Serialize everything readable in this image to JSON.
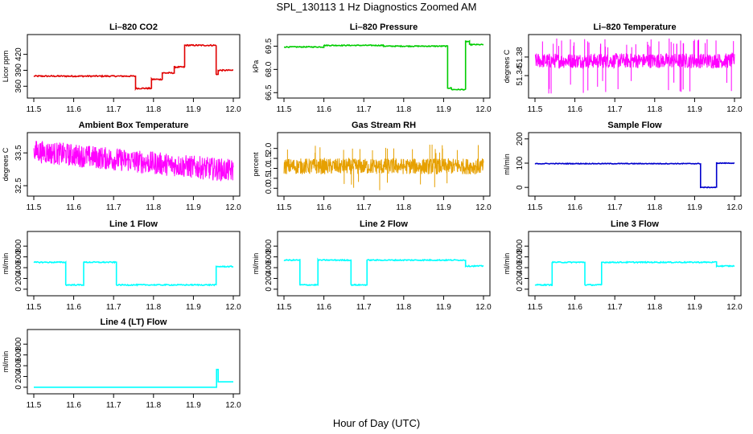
{
  "title": "SPL_130113  1 Hz Diagnostics Zoomed AM",
  "xlabel": "Hour of Day (UTC)",
  "chart_data": [
    {
      "type": "line",
      "title": "Li–820 CO2",
      "ylabel": "Licor ppm",
      "xlim": [
        11.5,
        12.0
      ],
      "xticks": [
        "11.5",
        "11.6",
        "11.7",
        "11.8",
        "11.9",
        "12.0"
      ],
      "ylim": [
        345,
        450
      ],
      "yticks": [
        360,
        390,
        420
      ],
      "yticklabels": [
        "360",
        "390",
        "420"
      ],
      "color": "#e00000",
      "noise": 1.2,
      "spikes": 0,
      "segments": [
        [
          11.5,
          11.755,
          379
        ],
        [
          11.755,
          11.795,
          356
        ],
        [
          11.795,
          11.822,
          373
        ],
        [
          11.822,
          11.852,
          385
        ],
        [
          11.852,
          11.878,
          396
        ],
        [
          11.878,
          11.957,
          437
        ],
        [
          11.957,
          11.962,
          382
        ],
        [
          11.962,
          12.0,
          390
        ]
      ]
    },
    {
      "type": "line",
      "title": "Li–820 Pressure",
      "ylabel": "kPa",
      "xlim": [
        11.5,
        12.0
      ],
      "xticks": [
        "11.5",
        "11.6",
        "11.7",
        "11.8",
        "11.9",
        "12.0"
      ],
      "ylim": [
        66.4,
        70.0
      ],
      "yticks": [
        66.5,
        68.0,
        69.5
      ],
      "yticklabels": [
        "66.5",
        "68.0",
        "69.5"
      ],
      "color": "#00cc00",
      "noise": 0.03,
      "spikes": 0,
      "segments": [
        [
          11.5,
          11.6,
          69.45
        ],
        [
          11.6,
          11.75,
          69.55
        ],
        [
          11.75,
          11.91,
          69.5
        ],
        [
          11.91,
          11.92,
          66.8
        ],
        [
          11.92,
          11.955,
          66.7
        ],
        [
          11.955,
          11.965,
          69.8
        ],
        [
          11.965,
          12.0,
          69.6
        ]
      ]
    },
    {
      "type": "band",
      "title": "Li–820 Temperature",
      "ylabel": "degrees C",
      "xlim": [
        11.5,
        12.0
      ],
      "xticks": [
        "11.5",
        "11.6",
        "11.7",
        "11.8",
        "11.9",
        "12.0"
      ],
      "ylim": [
        51.3,
        51.42
      ],
      "yticks": [
        51.34,
        51.38
      ],
      "yticklabels": [
        "51.34",
        "51.38"
      ],
      "color": "#ff00ff",
      "band": [
        51.356,
        51.388
      ],
      "spikeTop": 51.42,
      "spikeBottom": 51.3,
      "spikes": 60
    },
    {
      "type": "band",
      "title": "Ambient Box Temperature",
      "ylabel": "degrees C",
      "xlim": [
        11.5,
        12.0
      ],
      "xticks": [
        "11.5",
        "11.6",
        "11.7",
        "11.8",
        "11.9",
        "12.0"
      ],
      "ylim": [
        32.3,
        34.0
      ],
      "yticks": [
        32.5,
        33.5
      ],
      "yticklabels": [
        "32.5",
        "33.5"
      ],
      "color": "#ff00ff",
      "bandStart": [
        33.2,
        33.9
      ],
      "bandEnd": [
        32.6,
        33.3
      ],
      "spikes": 0
    },
    {
      "type": "band",
      "title": "Gas Stream RH",
      "ylabel": "percent",
      "xlim": [
        11.5,
        12.0
      ],
      "xticks": [
        "11.5",
        "11.6",
        "11.7",
        "11.8",
        "11.9",
        "12.0"
      ],
      "ylim": [
        -0.2,
        2.6
      ],
      "yticks": [
        0.0,
        0.5,
        1.0,
        1.5,
        2.0
      ],
      "yticklabels": [
        "0.0",
        "0.5",
        "1.0",
        "1.5",
        "2.0"
      ],
      "color": "#e6a000",
      "band": [
        0.7,
        1.5
      ],
      "spikeTop": 2.2,
      "spikeBottom": -0.1,
      "spikes": 30
    },
    {
      "type": "line",
      "title": "Sample Flow",
      "ylabel": "ml/min",
      "xlim": [
        11.5,
        12.0
      ],
      "xticks": [
        "11.5",
        "11.6",
        "11.7",
        "11.8",
        "11.9",
        "12.0"
      ],
      "ylim": [
        -20,
        210
      ],
      "yticks": [
        0,
        100,
        200
      ],
      "yticklabels": [
        "0",
        "100",
        "200"
      ],
      "color": "#0000cc",
      "noise": 1.5,
      "spikes": 0,
      "segments": [
        [
          11.5,
          11.915,
          98
        ],
        [
          11.915,
          11.955,
          0
        ],
        [
          11.955,
          12.0,
          100
        ]
      ]
    },
    {
      "type": "line",
      "title": "Line 1 Flow",
      "ylabel": "ml/min",
      "xlim": [
        11.5,
        12.0
      ],
      "xticks": [
        "11.5",
        "11.6",
        "11.7",
        "11.8",
        "11.9",
        "12.0"
      ],
      "ylim": [
        -50,
        1000
      ],
      "yticks": [
        0,
        200,
        400,
        600,
        800
      ],
      "yticklabels": [
        "0",
        "200",
        "400",
        "600",
        "800"
      ],
      "color": "#00ffff",
      "noise": 10,
      "spikes": 0,
      "segments": [
        [
          11.5,
          11.58,
          500
        ],
        [
          11.58,
          11.625,
          80
        ],
        [
          11.625,
          11.707,
          500
        ],
        [
          11.707,
          11.957,
          80
        ],
        [
          11.957,
          12.0,
          420
        ]
      ]
    },
    {
      "type": "line",
      "title": "Line 2 Flow",
      "ylabel": "ml/min",
      "xlim": [
        11.5,
        12.0
      ],
      "xticks": [
        "11.5",
        "11.6",
        "11.7",
        "11.8",
        "11.9",
        "12.0"
      ],
      "ylim": [
        -50,
        1000
      ],
      "yticks": [
        0,
        200,
        400,
        600,
        800
      ],
      "yticklabels": [
        "0",
        "200",
        "400",
        "600",
        "800"
      ],
      "color": "#00ffff",
      "noise": 10,
      "spikes": 0,
      "segments": [
        [
          11.5,
          11.54,
          540
        ],
        [
          11.54,
          11.585,
          80
        ],
        [
          11.585,
          11.668,
          540
        ],
        [
          11.668,
          11.708,
          80
        ],
        [
          11.708,
          11.955,
          540
        ],
        [
          11.955,
          12.0,
          430
        ]
      ]
    },
    {
      "type": "line",
      "title": "Line 3 Flow",
      "ylabel": "ml/min",
      "xlim": [
        11.5,
        12.0
      ],
      "xticks": [
        "11.5",
        "11.6",
        "11.7",
        "11.8",
        "11.9",
        "12.0"
      ],
      "ylim": [
        -50,
        1000
      ],
      "yticks": [
        0,
        200,
        400,
        600,
        800
      ],
      "yticklabels": [
        "0",
        "200",
        "400",
        "600",
        "800"
      ],
      "color": "#00ffff",
      "noise": 10,
      "spikes": 0,
      "segments": [
        [
          11.5,
          11.543,
          80
        ],
        [
          11.543,
          11.625,
          500
        ],
        [
          11.625,
          11.667,
          80
        ],
        [
          11.667,
          11.955,
          500
        ],
        [
          11.955,
          12.0,
          430
        ]
      ]
    },
    {
      "type": "line",
      "title": "Line 4 (LT) Flow",
      "ylabel": "ml/min",
      "xlim": [
        11.5,
        12.0
      ],
      "xticks": [
        "11.5",
        "11.6",
        "11.7",
        "11.8",
        "11.9",
        "12.0"
      ],
      "ylim": [
        -50,
        1000
      ],
      "yticks": [
        0,
        200,
        400,
        600,
        800
      ],
      "yticklabels": [
        "0",
        "200",
        "400",
        "600",
        "800"
      ],
      "color": "#00ffff",
      "noise": 0,
      "spikes": 0,
      "segments": [
        [
          11.5,
          11.958,
          0
        ],
        [
          11.958,
          11.962,
          330
        ],
        [
          11.962,
          12.0,
          100
        ]
      ]
    }
  ]
}
